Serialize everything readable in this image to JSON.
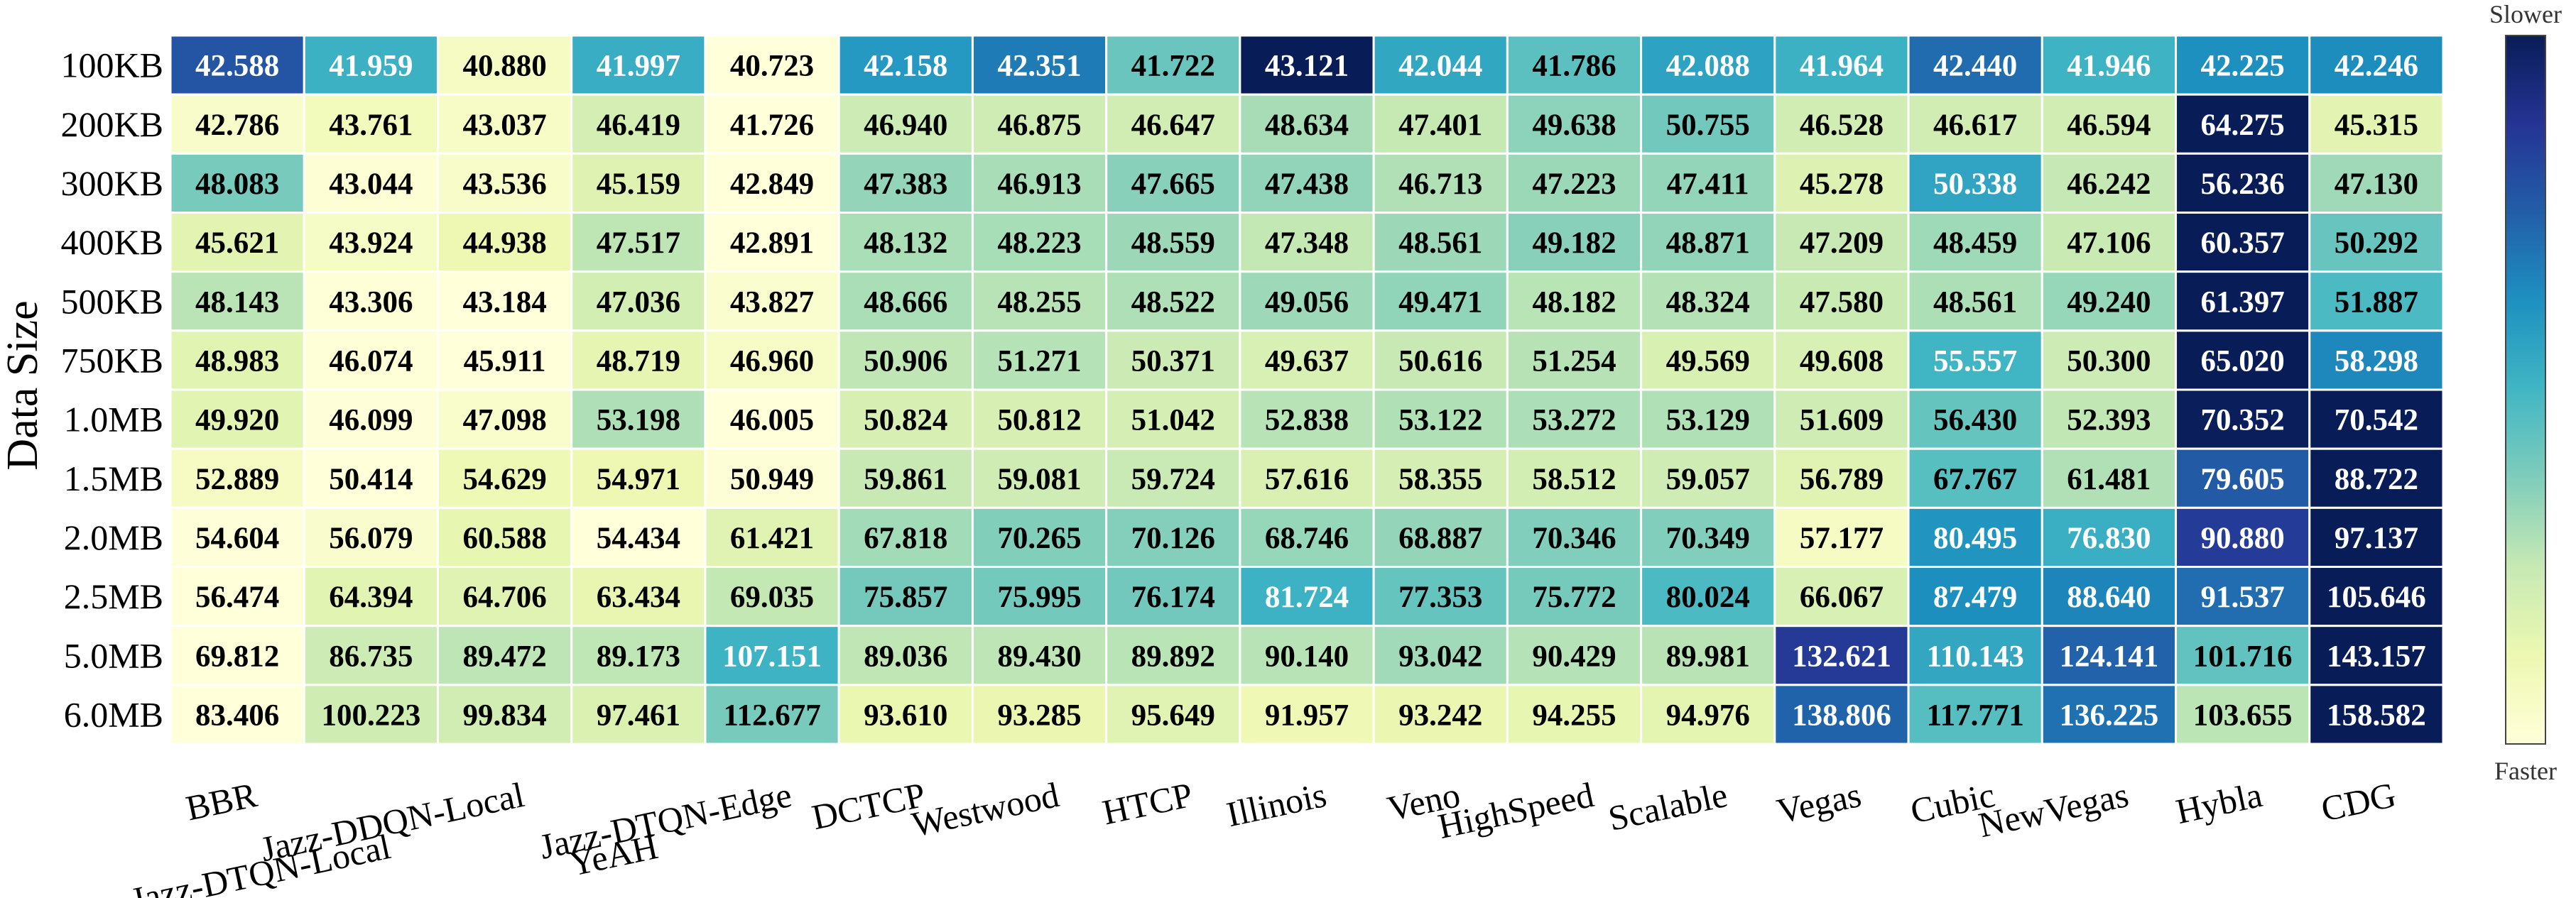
{
  "chart_data": {
    "type": "heatmap",
    "title": "",
    "ylabel": "Data Size",
    "xlabel": "",
    "rows": [
      "100KB",
      "200KB",
      "300KB",
      "400KB",
      "500KB",
      "750KB",
      "1.0MB",
      "1.5MB",
      "2.0MB",
      "2.5MB",
      "5.0MB",
      "6.0MB"
    ],
    "columns": [
      "BBR",
      "Jazz-DTQN-Local",
      "Jazz-DDQN-Local",
      "YeAH",
      "Jazz-DTQN-Edge",
      "DCTCP",
      "Westwood",
      "HTCP",
      "Illinois",
      "Veno",
      "HighSpeed",
      "Scalable",
      "Vegas",
      "Cubic",
      "NewVegas",
      "Hybla",
      "CDG"
    ],
    "values": [
      [
        42.588,
        41.959,
        40.88,
        41.997,
        40.723,
        42.158,
        42.351,
        41.722,
        43.121,
        42.044,
        41.786,
        42.088,
        41.964,
        42.44,
        41.946,
        42.225,
        42.246
      ],
      [
        42.786,
        43.761,
        43.037,
        46.419,
        41.726,
        46.94,
        46.875,
        46.647,
        48.634,
        47.401,
        49.638,
        50.755,
        46.528,
        46.617,
        46.594,
        64.275,
        45.315
      ],
      [
        48.083,
        43.044,
        43.536,
        45.159,
        42.849,
        47.383,
        46.913,
        47.665,
        47.438,
        46.713,
        47.223,
        47.411,
        45.278,
        50.338,
        46.242,
        56.236,
        47.13
      ],
      [
        45.621,
        43.924,
        44.938,
        47.517,
        42.891,
        48.132,
        48.223,
        48.559,
        47.348,
        48.561,
        49.182,
        48.871,
        47.209,
        48.459,
        47.106,
        60.357,
        50.292
      ],
      [
        48.143,
        43.306,
        43.184,
        47.036,
        43.827,
        48.666,
        48.255,
        48.522,
        49.056,
        49.471,
        48.182,
        48.324,
        47.58,
        48.561,
        49.24,
        61.397,
        51.887
      ],
      [
        48.983,
        46.074,
        45.911,
        48.719,
        46.96,
        50.906,
        51.271,
        50.371,
        49.637,
        50.616,
        51.254,
        49.569,
        49.608,
        55.557,
        50.3,
        65.02,
        58.298
      ],
      [
        49.92,
        46.099,
        47.098,
        53.198,
        46.005,
        50.824,
        50.812,
        51.042,
        52.838,
        53.122,
        53.272,
        53.129,
        51.609,
        56.43,
        52.393,
        70.352,
        70.542
      ],
      [
        52.889,
        50.414,
        54.629,
        54.971,
        50.949,
        59.861,
        59.081,
        59.724,
        57.616,
        58.355,
        58.512,
        59.057,
        56.789,
        67.767,
        61.481,
        79.605,
        88.722
      ],
      [
        54.604,
        56.079,
        60.588,
        54.434,
        61.421,
        67.818,
        70.265,
        70.126,
        68.746,
        68.887,
        70.346,
        70.349,
        57.177,
        80.495,
        76.83,
        90.88,
        97.137
      ],
      [
        56.474,
        64.394,
        64.706,
        63.434,
        69.035,
        75.857,
        75.995,
        76.174,
        81.724,
        77.353,
        75.772,
        80.024,
        66.067,
        87.479,
        88.64,
        91.537,
        105.646
      ],
      [
        69.812,
        86.735,
        89.472,
        89.173,
        107.151,
        89.036,
        89.43,
        89.892,
        90.14,
        93.042,
        90.429,
        89.981,
        132.621,
        110.143,
        124.141,
        101.716,
        143.157
      ],
      [
        83.406,
        100.223,
        99.834,
        97.461,
        112.677,
        93.61,
        93.285,
        95.649,
        91.957,
        93.242,
        94.255,
        94.976,
        138.806,
        117.771,
        136.225,
        103.655,
        158.582
      ]
    ],
    "value_format": "3 decimals",
    "colorscale": "YlGnBu",
    "normalization": "per-row",
    "colorbar": {
      "top_label": "Slower",
      "bottom_label": "Faster"
    },
    "grid": false,
    "colors": {
      "scale_stops": [
        "#ffffd9",
        "#edf8b1",
        "#c7e9b4",
        "#7fcdbb",
        "#41b6c4",
        "#1d91c0",
        "#225ea8",
        "#253494",
        "#081d58"
      ],
      "cell_border": "#ffffff",
      "text_dark": "#000000",
      "text_light": "#ffffff"
    }
  }
}
